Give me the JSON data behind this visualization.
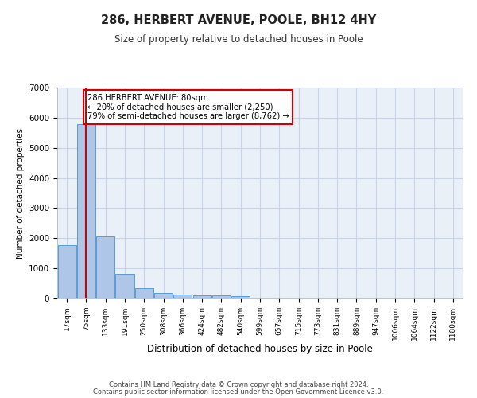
{
  "title": "286, HERBERT AVENUE, POOLE, BH12 4HY",
  "subtitle": "Size of property relative to detached houses in Poole",
  "xlabel": "Distribution of detached houses by size in Poole",
  "ylabel": "Number of detached properties",
  "annotation_line1": "286 HERBERT AVENUE: 80sqm",
  "annotation_line2": "← 20% of detached houses are smaller (2,250)",
  "annotation_line3": "79% of semi-detached houses are larger (8,762) →",
  "bar_color": "#aec6e8",
  "bar_edge_color": "#5b9bd5",
  "vline_color": "#cc0000",
  "annotation_box_color": "#cc0000",
  "background_color": "#ffffff",
  "plot_bg_color": "#eaf0f8",
  "grid_color": "#c8d4e8",
  "categories": [
    "17sqm",
    "75sqm",
    "133sqm",
    "191sqm",
    "250sqm",
    "308sqm",
    "366sqm",
    "424sqm",
    "482sqm",
    "540sqm",
    "599sqm",
    "657sqm",
    "715sqm",
    "773sqm",
    "831sqm",
    "889sqm",
    "947sqm",
    "1006sqm",
    "1064sqm",
    "1122sqm",
    "1180sqm"
  ],
  "values": [
    1780,
    5780,
    2050,
    820,
    340,
    190,
    120,
    115,
    105,
    75,
    0,
    0,
    0,
    0,
    0,
    0,
    0,
    0,
    0,
    0,
    0
  ],
  "ylim": [
    0,
    7000
  ],
  "yticks": [
    0,
    1000,
    2000,
    3000,
    4000,
    5000,
    6000,
    7000
  ],
  "vline_position": 1.0,
  "footer_line1": "Contains HM Land Registry data © Crown copyright and database right 2024.",
  "footer_line2": "Contains public sector information licensed under the Open Government Licence v3.0."
}
